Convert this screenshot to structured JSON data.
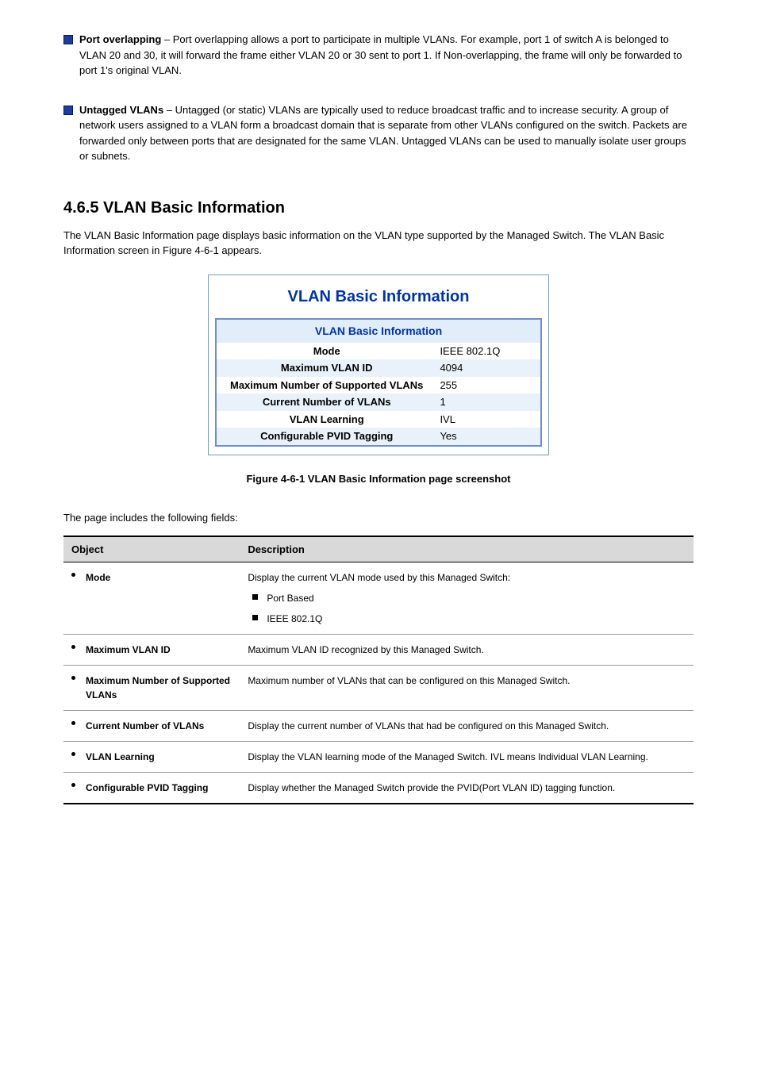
{
  "intro_bullets": [
    {
      "title": "Port overlapping",
      "text": " – Port overlapping allows a port to participate in multiple VLANs. For example, port 1 of switch A is belonged to VLAN 20 and 30, it will forward the frame either VLAN 20 or 30 sent to port 1. If Non-overlapping, the frame will only be forwarded to port 1's original VLAN."
    },
    {
      "title": "Untagged VLANs",
      "text": " – Untagged (or static) VLANs are typically used to reduce broadcast traffic and to increase security. A group of network users assigned to a VLAN form a broadcast domain that is separate from other VLANs configured on the switch. Packets are forwarded only between ports that are designated for the same VLAN. Untagged VLANs can be used to manually isolate user groups or subnets."
    }
  ],
  "section": {
    "heading": "4.6.5 VLAN Basic Information",
    "desc": "The VLAN Basic Information page displays basic information on the VLAN type supported by the Managed Switch. The VLAN Basic Information screen in Figure 4-6-1 appears."
  },
  "vlan_panel": {
    "title": "VLAN Basic Information",
    "header": "VLAN Basic Information",
    "background_colors": {
      "panel_border": "#7a9ac0",
      "inner_border": "#6d8fc2",
      "header_bg": "#e1edf9",
      "alt_bg": "#e9f2fa",
      "title_color": "#0033aa"
    },
    "rows": [
      {
        "label": "Mode",
        "value": "IEEE 802.1Q",
        "alt": false
      },
      {
        "label": "Maximum VLAN ID",
        "value": "4094",
        "alt": true
      },
      {
        "label": "Maximum Number of Supported VLANs",
        "value": "255",
        "alt": false
      },
      {
        "label": "Current Number of VLANs",
        "value": "1",
        "alt": true
      },
      {
        "label": "VLAN Learning",
        "value": "IVL",
        "alt": false
      },
      {
        "label": "Configurable PVID Tagging",
        "value": "Yes",
        "alt": true
      }
    ]
  },
  "figure_caption": "Figure 4-6-1 VLAN Basic Information page screenshot",
  "fields_intro": "The page includes the following fields:",
  "obj_table": {
    "headers": {
      "object": "Object",
      "description": "Description"
    },
    "rows": [
      {
        "name": "Mode",
        "desc": "Display the current VLAN mode used by this Managed Switch:",
        "subs": [
          "Port Based",
          "IEEE 802.1Q"
        ]
      },
      {
        "name": "Maximum VLAN ID",
        "desc": "Maximum VLAN ID recognized by this Managed Switch.",
        "subs": []
      },
      {
        "name": "Maximum Number of Supported VLANs",
        "desc": "Maximum number of VLANs that can be configured on this Managed Switch.",
        "subs": []
      },
      {
        "name": "Current Number of VLANs",
        "desc": "Display the current number of VLANs that had be configured on this Managed Switch.",
        "subs": []
      },
      {
        "name": "VLAN Learning",
        "desc": "Display the VLAN learning mode of the Managed Switch. IVL means Individual VLAN Learning.",
        "subs": []
      },
      {
        "name": "Configurable PVID Tagging",
        "desc": "Display whether the Managed Switch provide the PVID(Port VLAN ID) tagging function.",
        "subs": []
      }
    ]
  }
}
